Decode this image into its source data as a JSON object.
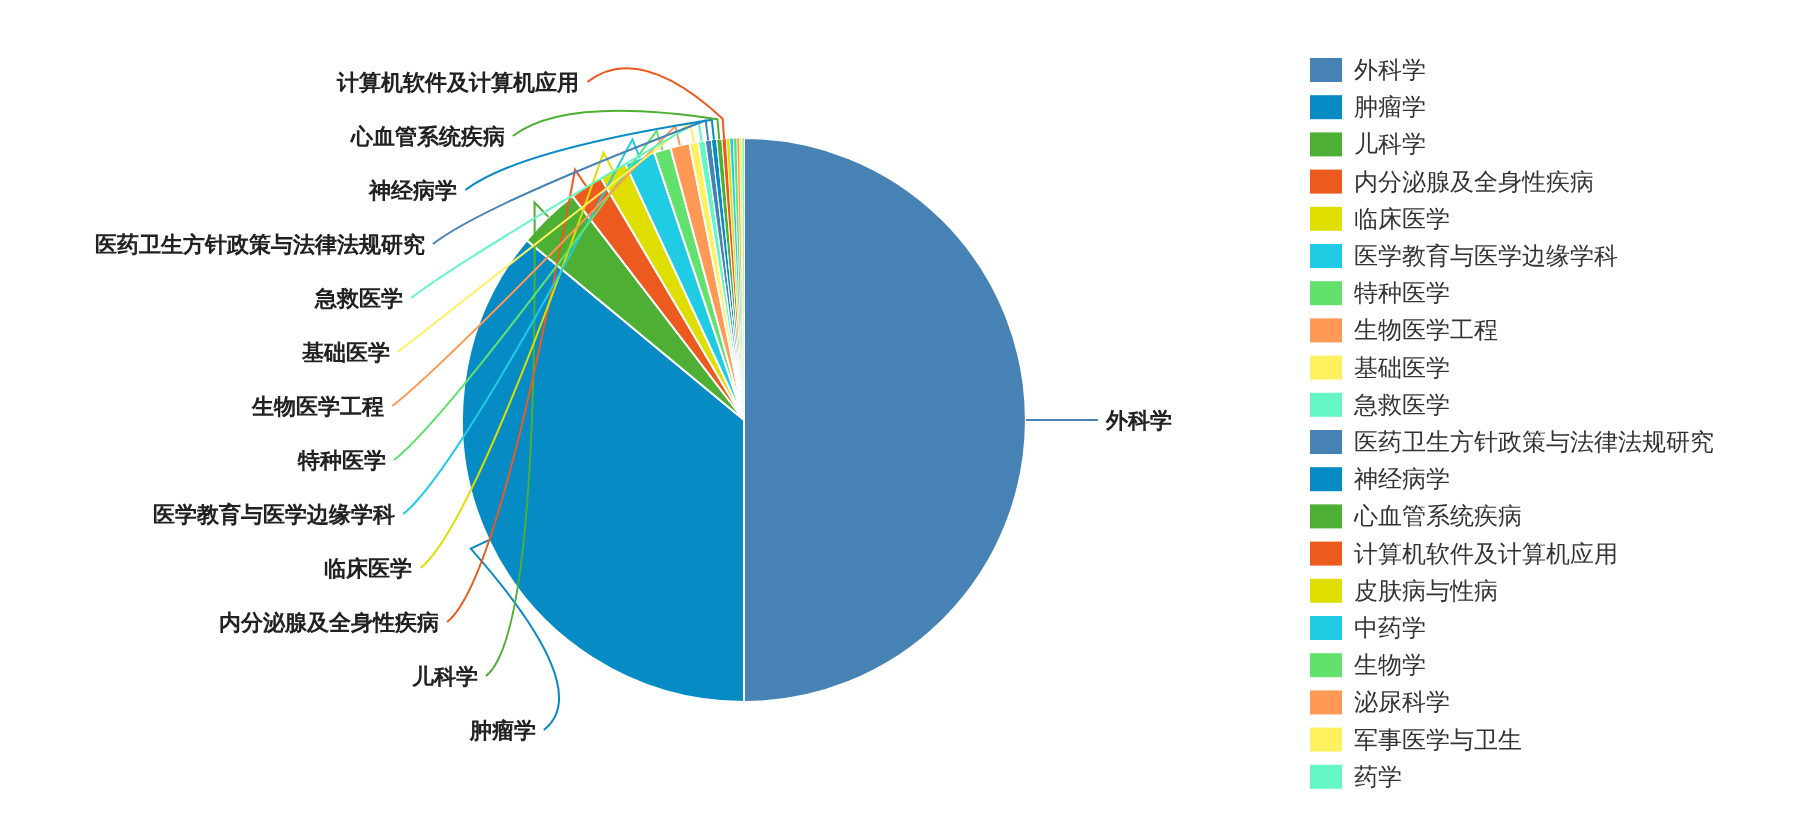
{
  "chart_data": {
    "type": "pie",
    "categories": [
      "外科学",
      "肿瘤学",
      "儿科学",
      "内分泌腺及全身性疾病",
      "临床医学",
      "医学教育与医学边缘学科",
      "特种医学",
      "生物医学工程",
      "基础医学",
      "急救医学",
      "医药卫生方针政策与法律法规研究",
      "神经病学",
      "心血管系统疾病",
      "计算机软件及计算机应用",
      "皮肤病与性病",
      "中药学",
      "生物学",
      "泌尿科学",
      "军事医学与卫生",
      "药学"
    ],
    "values": [
      50,
      36,
      3.6,
      1.9,
      1.6,
      1.75,
      0.95,
      1.1,
      0.5,
      0.4,
      0.35,
      0.3,
      0.3,
      0.25,
      0.2,
      0.2,
      0.2,
      0.15,
      0.15,
      0.1
    ],
    "colors": [
      "#4682b4",
      "#078bc5",
      "#4daf33",
      "#ec5a1f",
      "#dede00",
      "#20cce4",
      "#62e26d",
      "#ff9955",
      "#fff060",
      "#66f6c6",
      "#4682b4",
      "#078bc5",
      "#4daf33",
      "#ec5a1f",
      "#dede00",
      "#20cce4",
      "#62e26d",
      "#ff9955",
      "#fff060",
      "#66f6c6"
    ],
    "legend": "right"
  }
}
